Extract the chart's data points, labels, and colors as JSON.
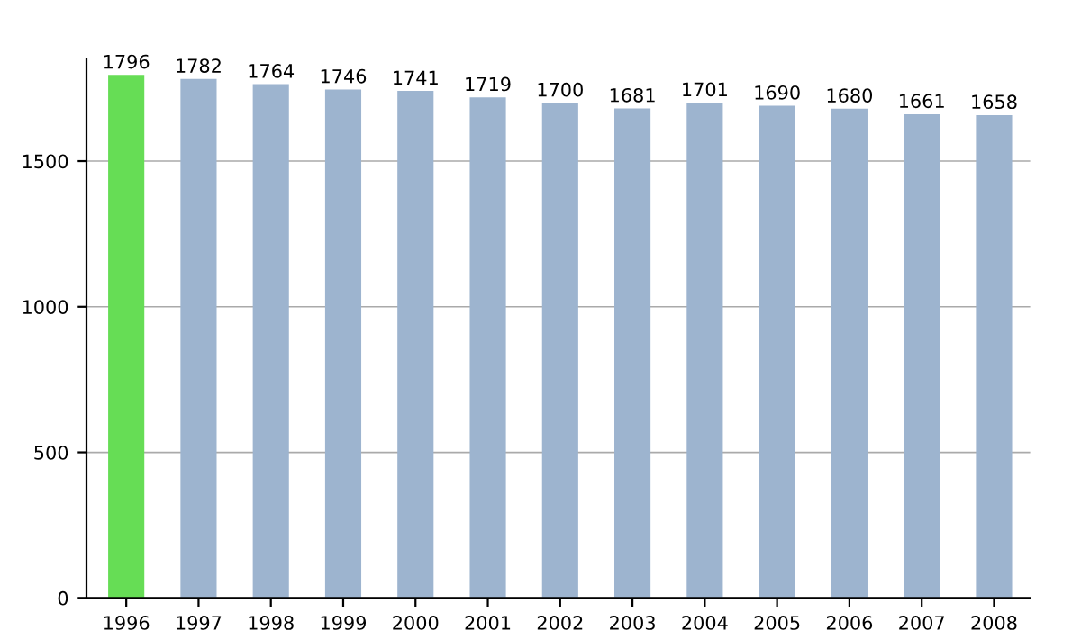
{
  "chart_data": {
    "type": "bar",
    "categories": [
      "1996",
      "1997",
      "1998",
      "1999",
      "2000",
      "2001",
      "2002",
      "2003",
      "2004",
      "2005",
      "2006",
      "2007",
      "2008"
    ],
    "values": [
      1796,
      1782,
      1764,
      1746,
      1741,
      1719,
      1700,
      1681,
      1701,
      1690,
      1680,
      1661,
      1658
    ],
    "colors": [
      "#66dd55",
      "#9db4cf",
      "#9db4cf",
      "#9db4cf",
      "#9db4cf",
      "#9db4cf",
      "#9db4cf",
      "#9db4cf",
      "#9db4cf",
      "#9db4cf",
      "#9db4cf",
      "#9db4cf",
      "#9db4cf"
    ],
    "ylim": [
      0,
      1850
    ],
    "yticks": [
      0,
      500,
      1000,
      1500
    ],
    "grid": "y",
    "data_labels": true,
    "legend": false
  }
}
